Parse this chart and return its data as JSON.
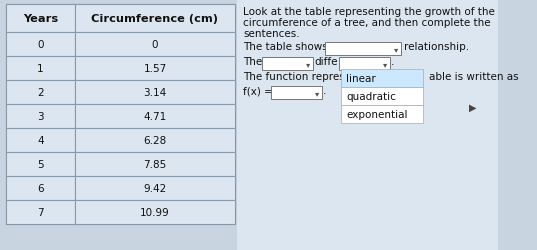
{
  "years": [
    0,
    1,
    2,
    3,
    4,
    5,
    6,
    7
  ],
  "circumferences": [
    "0",
    "1.57",
    "3.14",
    "4.71",
    "6.28",
    "7.85",
    "9.42",
    "10.99"
  ],
  "col1_header": "Years",
  "col2_header": "Circumference (cm)",
  "bg_color": "#c8d4e0",
  "table_header_bg": "#dce6f0",
  "table_row_bg": "#dce6f0",
  "border_color": "#8899aa",
  "text_color": "#111111",
  "right_bg": "#dce6f0",
  "right_text_line1": "Look at the table representing the growth of the",
  "right_text_line2": "circumference of a tree, and then complete the",
  "right_text_line3": "sentences.",
  "sentence1_a": "The table shows a",
  "sentence1_b": "relationship.",
  "sentence2_a": "The",
  "sentence2_b": "diffe",
  "sentence3_a": "The function repres",
  "sentence3_b": "able is written as",
  "sentence4_a": "f(x) =",
  "dropdown_options": [
    "linear",
    "quadratic",
    "exponential"
  ],
  "dropdown_highlight": "#cce8ff",
  "dropdown_bg": "#ffffff",
  "font_size": 7.5,
  "header_font_size": 8.2
}
